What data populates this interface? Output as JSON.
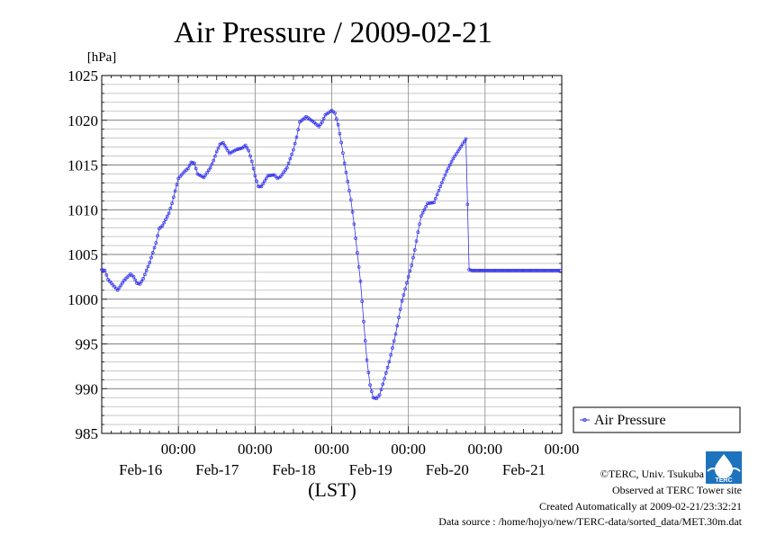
{
  "page": {
    "credits": [
      "©TERC, Univ. Tsukuba",
      "Observed at TERC Tower site",
      "Created Automatically at 2009-02-21/23:32:21",
      "Data source : /home/hojyo/new/TERC-data/sorted_data/MET.30m.dat"
    ],
    "logo_text": "TERC"
  },
  "chart_data": {
    "type": "line",
    "title": "Air Pressure / 2009-02-21",
    "ylabel": "[hPa]",
    "xlabel": "(LST)",
    "ylim": [
      985,
      1025
    ],
    "y_ticks": [
      985,
      990,
      995,
      1000,
      1005,
      1010,
      1015,
      1020,
      1025
    ],
    "x_range_hours": [
      0,
      144
    ],
    "day_ticks": [
      {
        "time": "00:00",
        "date": "Feb-16"
      },
      {
        "time": "00:00",
        "date": "Feb-17"
      },
      {
        "time": "00:00",
        "date": "Feb-18"
      },
      {
        "time": "00:00",
        "date": "Feb-19"
      },
      {
        "time": "00:00",
        "date": "Feb-20"
      },
      {
        "time": "00:00",
        "date": "Feb-21"
      }
    ],
    "legend_position": "right",
    "grid": true,
    "series": [
      {
        "name": "Air Pressure",
        "color": "#3333ee",
        "knots_hours": [
          0,
          1,
          2,
          4,
          5,
          7,
          9,
          10,
          11,
          12,
          13,
          15,
          17,
          18,
          19,
          20,
          21,
          22,
          24,
          26,
          27,
          28,
          29,
          30,
          32,
          34,
          35,
          36,
          37,
          38,
          40,
          42,
          44,
          45,
          46,
          47,
          48,
          49,
          50,
          52,
          54,
          55,
          56,
          58,
          60,
          61,
          62,
          64,
          66,
          68,
          69,
          70,
          72,
          73,
          74,
          75,
          76,
          78,
          79,
          80,
          81,
          82,
          83,
          84,
          85,
          86,
          87,
          88,
          90,
          92,
          94,
          96,
          97,
          98,
          99,
          100,
          102,
          104,
          106,
          108,
          110,
          112,
          114,
          115,
          116,
          117,
          118,
          119,
          120,
          121,
          122,
          124,
          126,
          127,
          128,
          130,
          132,
          134,
          136,
          138,
          140,
          142,
          143.5
        ],
        "knots_values": [
          1003.3,
          1003.2,
          1002.2,
          1001.4,
          1001.0,
          1002.1,
          1002.8,
          1002.5,
          1001.8,
          1001.7,
          1002.3,
          1004.1,
          1006.3,
          1007.9,
          1008.2,
          1008.9,
          1009.6,
          1010.7,
          1013.5,
          1014.3,
          1014.6,
          1015.3,
          1015.2,
          1014.0,
          1013.6,
          1014.7,
          1015.5,
          1016.5,
          1017.3,
          1017.5,
          1016.3,
          1016.7,
          1016.9,
          1017.2,
          1016.6,
          1015.4,
          1013.8,
          1012.6,
          1012.6,
          1013.8,
          1013.9,
          1013.5,
          1013.7,
          1014.7,
          1016.7,
          1018.1,
          1019.8,
          1020.4,
          1019.9,
          1019.3,
          1019.8,
          1020.6,
          1021.1,
          1020.8,
          1019.5,
          1017.5,
          1015.2,
          1011.1,
          1008.4,
          1005.2,
          1002.0,
          997.5,
          993.2,
          990.4,
          989.0,
          988.9,
          989.3,
          990.5,
          993.0,
          996.1,
          999.8,
          1002.5,
          1003.8,
          1005.5,
          1007.5,
          1009.3,
          1010.7,
          1010.8,
          1012.6,
          1014.3,
          1015.7,
          1016.8,
          1017.9,
          1003.3,
          1003.2,
          1003.2,
          1003.2,
          1003.2,
          1003.2,
          1003.2,
          1003.2,
          1003.2,
          1003.2,
          1003.2,
          1003.2,
          1003.2,
          1003.2,
          1003.2,
          1003.2,
          1003.2,
          1003.2,
          1003.2,
          1003.2
        ]
      }
    ]
  }
}
